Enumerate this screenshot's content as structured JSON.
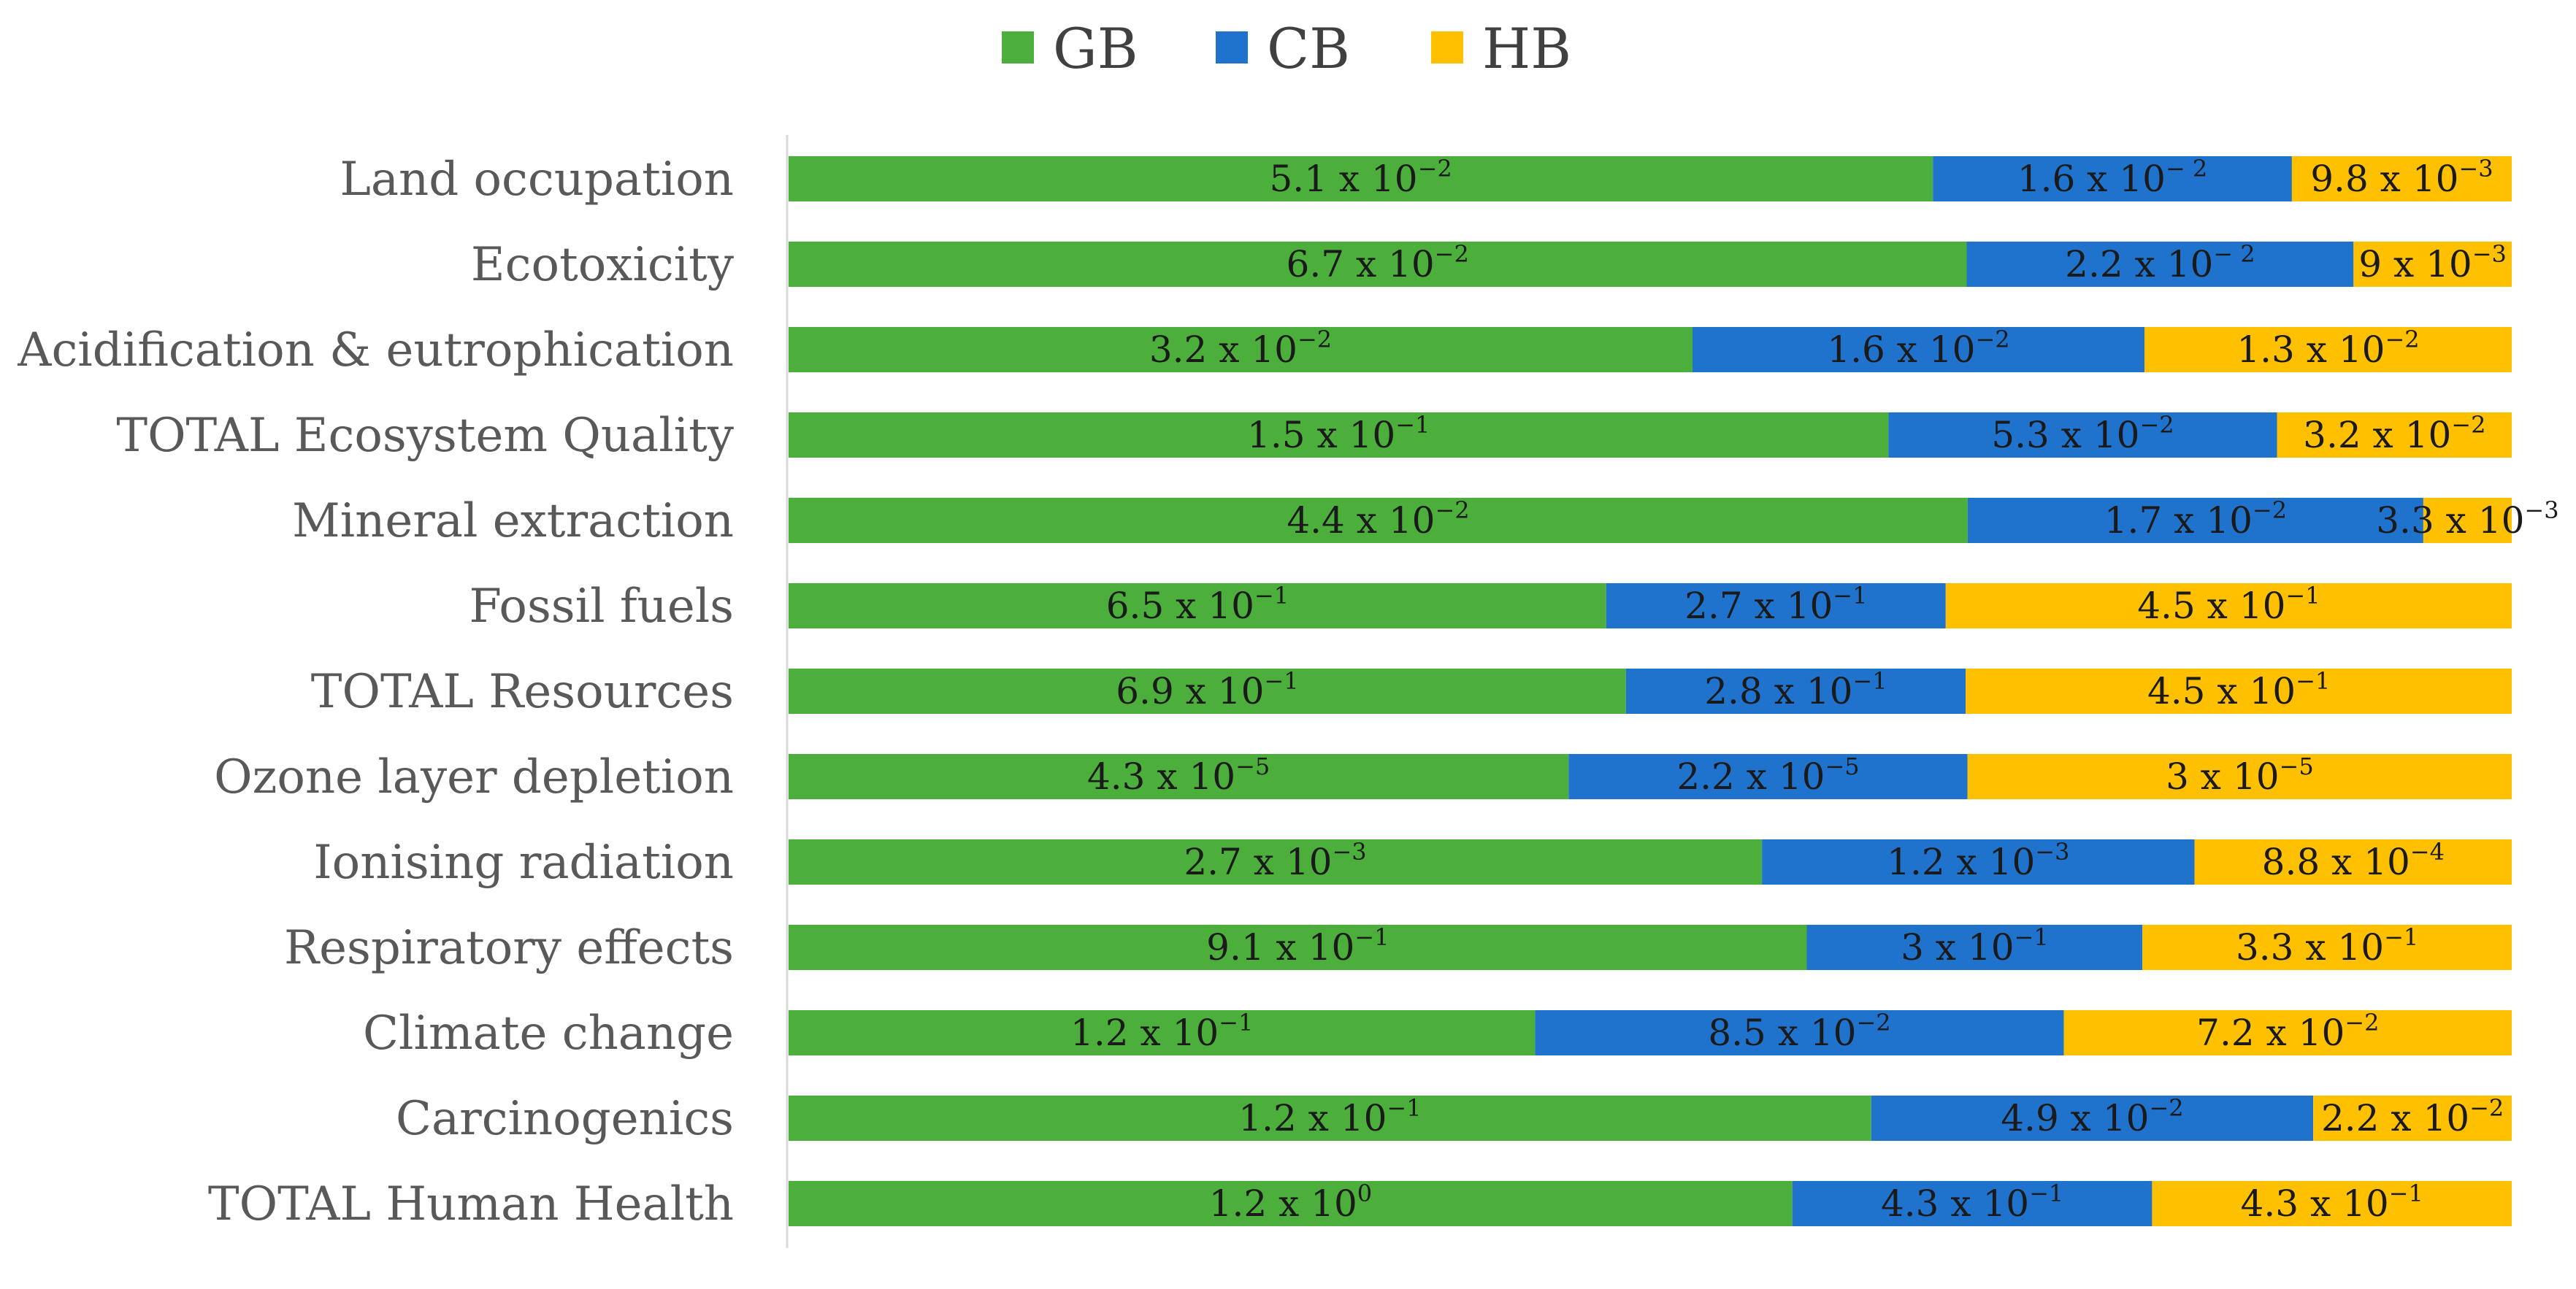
{
  "chart_data": {
    "type": "bar",
    "orientation": "horizontal",
    "stacked": true,
    "normalized": true,
    "title": "",
    "xlabel": "",
    "ylabel": "",
    "grid": false,
    "legend_position": "top",
    "categories": [
      "Land occupation",
      "Ecotoxicity",
      "Acidification & eutrophication",
      "TOTAL Ecosystem Quality",
      "Mineral extraction",
      "Fossil fuels",
      "TOTAL Resources",
      "Ozone layer depletion",
      "Ionising radiation ",
      "Respiratory effects",
      "Climate change ",
      "Carcinogenics",
      "TOTAL Human Health"
    ],
    "series": [
      {
        "name": "GB",
        "color": "#4CAF3C",
        "values": [
          0.051,
          0.067,
          0.032,
          0.15,
          0.044,
          0.65,
          0.69,
          4.3e-05,
          0.0027,
          0.91,
          0.12,
          0.12,
          1.2
        ],
        "labels": [
          {
            "m": "5.1 x 10",
            "e": "−2"
          },
          {
            "m": "6.7 x 10",
            "e": "−2"
          },
          {
            "m": "3.2 x 10",
            "e": "−2"
          },
          {
            "m": "1.5 x 10",
            "e": "−1"
          },
          {
            "m": "4.4 x 10",
            "e": "−2"
          },
          {
            "m": "6.5 x 10",
            "e": "−1"
          },
          {
            "m": "6.9 x 10",
            "e": "−1"
          },
          {
            "m": "4.3 x 10",
            "e": "−5"
          },
          {
            "m": "2.7 x 10",
            "e": "−3"
          },
          {
            "m": "9.1 x 10",
            "e": "−1"
          },
          {
            "m": "1.2 x 10",
            "e": "−1"
          },
          {
            "m": "1.2 x 10",
            "e": "−1"
          },
          {
            "m": "1.2 x 10",
            "e": "0"
          }
        ]
      },
      {
        "name": "CB",
        "color": "#1F73CD",
        "values": [
          0.016,
          0.022,
          0.016,
          0.053,
          0.017,
          0.27,
          0.28,
          2.2e-05,
          0.0012,
          0.3,
          0.085,
          0.049,
          0.43
        ],
        "labels": [
          {
            "m": "1.6 x 10",
            "e": "− 2"
          },
          {
            "m": "2.2 x 10",
            "e": "− 2"
          },
          {
            "m": "1.6 x 10",
            "e": "−2"
          },
          {
            "m": "5.3 x 10",
            "e": "−2"
          },
          {
            "m": "1.7 x 10",
            "e": "−2"
          },
          {
            "m": "2.7 x 10",
            "e": "−1"
          },
          {
            "m": "2.8 x 10",
            "e": "−1"
          },
          {
            "m": "2.2 x 10",
            "e": "−5"
          },
          {
            "m": "1.2 x 10",
            "e": "−3"
          },
          {
            "m": "3 x 10",
            "e": "−1"
          },
          {
            "m": "8.5 x 10",
            "e": "−2"
          },
          {
            "m": "4.9 x 10",
            "e": "−2"
          },
          {
            "m": "4.3 x 10",
            "e": "−1"
          }
        ]
      },
      {
        "name": "HB",
        "color": "#FFC000",
        "values": [
          0.0098,
          0.009,
          0.013,
          0.032,
          0.0033,
          0.45,
          0.45,
          3e-05,
          0.00088,
          0.33,
          0.072,
          0.022,
          0.43
        ],
        "labels": [
          {
            "m": "9.8 x 10",
            "e": "−3"
          },
          {
            "m": "9 x 10",
            "e": "−3"
          },
          {
            "m": "1.3 x 10",
            "e": "−2"
          },
          {
            "m": "3.2 x 10",
            "e": "−2"
          },
          {
            "m": "3.3 x 10",
            "e": "−3"
          },
          {
            "m": "4.5 x 10",
            "e": "−1"
          },
          {
            "m": "4.5 x 10",
            "e": "−1"
          },
          {
            "m": "3 x 10",
            "e": "−5"
          },
          {
            "m": "8.8 x 10",
            "e": "−4"
          },
          {
            "m": "3.3 x 10",
            "e": "−1"
          },
          {
            "m": "7.2 x 10",
            "e": "−2"
          },
          {
            "m": "2.2 x 10",
            "e": "−2"
          },
          {
            "m": "4.3 x 10",
            "e": "−1"
          }
        ]
      }
    ]
  }
}
